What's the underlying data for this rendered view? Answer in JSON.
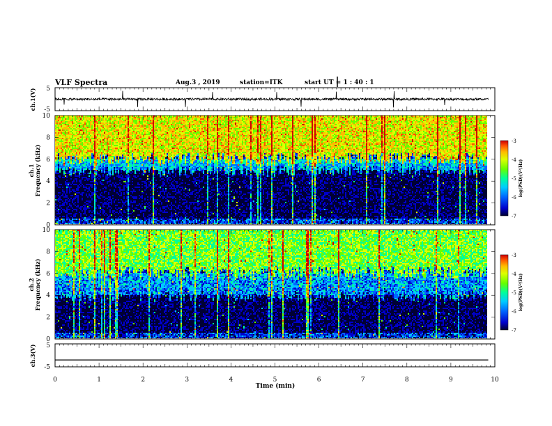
{
  "header": {
    "title": "VLF Spectra",
    "date": "Aug.3 , 2019",
    "station": "station=ITK",
    "start": "start UT = 1 : 40 : 1"
  },
  "colors": {
    "colormap": [
      "#000033",
      "#0000cc",
      "#0066ff",
      "#00ccff",
      "#00ff99",
      "#66ff00",
      "#ddff00",
      "#ffbb00",
      "#ff5500",
      "#cc0000"
    ],
    "trace": "#000000",
    "background": "#ffffff"
  },
  "chart_data": [
    {
      "type": "line",
      "panel": "ch1-waveform",
      "ylabel": "ch.1(V)",
      "ylim": [
        -5,
        5
      ],
      "yticks": [
        "5",
        "-5"
      ],
      "xlim": [
        0,
        10
      ],
      "description_values": {
        "mean_level": 0,
        "typical_amplitude": 1,
        "spike_amplitude": 4
      }
    },
    {
      "type": "heatmap",
      "panel": "ch1-spectrogram",
      "ylabel": "ch.1\nFrequency (kHz)",
      "ylim": [
        0,
        10
      ],
      "yticks": [
        "0",
        "2",
        "4",
        "6",
        "8",
        "10"
      ],
      "xlim": [
        0,
        9.85
      ],
      "zlabel": "log(PSD)(V²/Hz)",
      "zlim": [
        -7,
        -3
      ],
      "zticks": [
        "-3",
        "-4",
        "-5",
        "-6",
        "-7"
      ],
      "bands": [
        {
          "freq_range_khz": [
            6,
            10
          ],
          "log_psd": -4.3
        },
        {
          "freq_range_khz": [
            5,
            6
          ],
          "log_psd": -5.6
        },
        {
          "freq_range_khz": [
            0.5,
            5
          ],
          "log_psd": -6.8
        },
        {
          "freq_range_khz": [
            0,
            0.5
          ],
          "log_psd": -6.2
        }
      ]
    },
    {
      "type": "heatmap",
      "panel": "ch2-spectrogram",
      "ylabel": "ch.2\nFrequency (kHz)",
      "ylim": [
        0,
        10
      ],
      "yticks": [
        "0",
        "2",
        "4",
        "6",
        "8",
        "10"
      ],
      "xlim": [
        0,
        9.85
      ],
      "zlabel": "log(PSD)(V²/Hz)",
      "zlim": [
        -7,
        -3
      ],
      "zticks": [
        "-3",
        "-4",
        "-5",
        "-6",
        "-7"
      ],
      "bands": [
        {
          "freq_range_khz": [
            6,
            10
          ],
          "log_psd": -4.8
        },
        {
          "freq_range_khz": [
            4,
            6
          ],
          "log_psd": -5.8
        },
        {
          "freq_range_khz": [
            0.5,
            4
          ],
          "log_psd": -6.8
        },
        {
          "freq_range_khz": [
            0,
            0.5
          ],
          "log_psd": -6.2
        }
      ]
    },
    {
      "type": "line",
      "panel": "ch3-waveform",
      "ylabel": "ch.3(V)",
      "ylim": [
        -5,
        5
      ],
      "yticks": [
        "5",
        "-5"
      ],
      "xlabel": "Time (min)",
      "xlim": [
        0,
        10
      ],
      "xticks": [
        "0",
        "1",
        "2",
        "3",
        "4",
        "5",
        "6",
        "7",
        "8",
        "9",
        "10"
      ],
      "x": [
        0,
        9.85
      ],
      "y": [
        -2,
        -2
      ]
    }
  ]
}
